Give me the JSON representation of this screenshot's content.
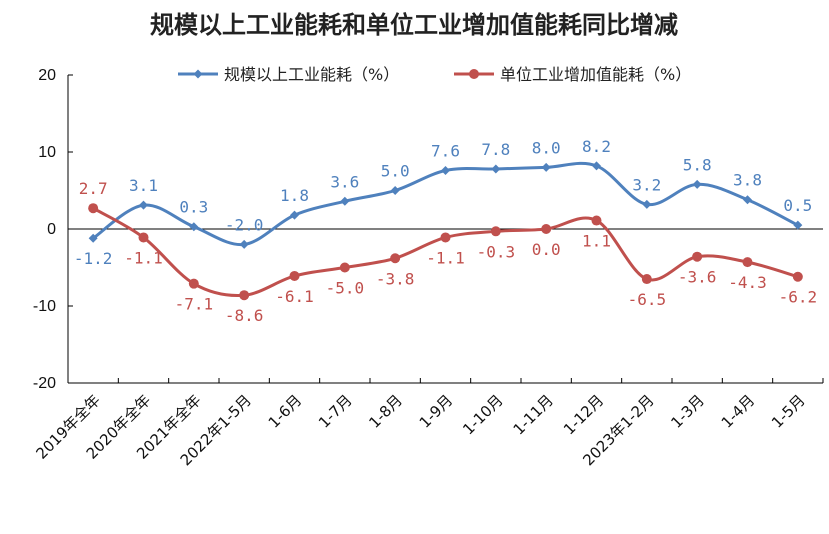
{
  "chart_data": {
    "type": "line",
    "title": "规模以上工业能耗和单位工业增加值能耗同比增减",
    "xlabel": "",
    "ylabel": "",
    "ylim": [
      -20,
      20
    ],
    "yticks": [
      -20,
      -10,
      0,
      10,
      20
    ],
    "legend_position": "top",
    "grid": false,
    "categories": [
      "2019年全年",
      "2020年全年",
      "2021年全年",
      "2022年1-5月",
      "1-6月",
      "1-7月",
      "1-8月",
      "1-9月",
      "1-10月",
      "1-11月",
      "1-12月",
      "2023年1-2月",
      "1-3月",
      "1-4月",
      "1-5月"
    ],
    "series": [
      {
        "name": "规模以上工业能耗（%）",
        "color": "#4f81bd",
        "marker": "diamond",
        "values": [
          -1.2,
          3.1,
          0.3,
          -2.0,
          1.8,
          3.6,
          5.0,
          7.6,
          7.8,
          8.0,
          8.2,
          3.2,
          5.8,
          3.8,
          0.5
        ],
        "labels": [
          "-1.2",
          "3.1",
          "0.3",
          "-2.0",
          "1.8",
          "3.6",
          "5.0",
          "7.6",
          "7.8",
          "8.0",
          "8.2",
          "3.2",
          "5.8",
          "3.8",
          "0.5"
        ]
      },
      {
        "name": "单位工业增加值能耗（%）",
        "color": "#c0504d",
        "marker": "circle",
        "values": [
          2.7,
          -1.1,
          -7.1,
          -8.6,
          -6.1,
          -5.0,
          -3.8,
          -1.1,
          -0.3,
          0.0,
          1.1,
          -6.5,
          -3.6,
          -4.3,
          -6.2
        ],
        "labels": [
          "2.7",
          "-1.1",
          "-7.1",
          "-8.6",
          "-6.1",
          "-5.0",
          "-3.8",
          "-1.1",
          "-0.3",
          "0.0",
          "1.1",
          "-6.5",
          "-3.6",
          "-4.3",
          "-6.2"
        ]
      }
    ]
  }
}
